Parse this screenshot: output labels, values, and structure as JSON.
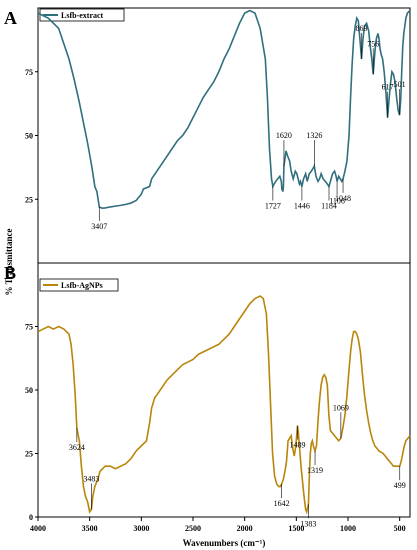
{
  "chart_data": {
    "type": "line",
    "xlabel": "Wavenumbers (cm⁻¹)",
    "ylabel": "% Transmittance",
    "xlim": [
      4000,
      400
    ],
    "x_ticks": [
      4000,
      3500,
      3000,
      2500,
      2000,
      1500,
      1000,
      500
    ],
    "panels": [
      {
        "letter": "A",
        "series_name": "Lsfb-extract",
        "color": "#2f6f7e",
        "ylim": [
          0,
          100
        ],
        "y_ticks": [
          25,
          50,
          75
        ],
        "series": [
          [
            4000,
            98
          ],
          [
            3900,
            96
          ],
          [
            3800,
            92
          ],
          [
            3750,
            86
          ],
          [
            3700,
            80
          ],
          [
            3650,
            72
          ],
          [
            3600,
            63
          ],
          [
            3560,
            55
          ],
          [
            3520,
            47
          ],
          [
            3480,
            38
          ],
          [
            3450,
            30
          ],
          [
            3430,
            28
          ],
          [
            3407,
            22
          ],
          [
            3380,
            21.5
          ],
          [
            3350,
            21.6
          ],
          [
            3300,
            22
          ],
          [
            3250,
            22.3
          ],
          [
            3200,
            22.6
          ],
          [
            3150,
            23
          ],
          [
            3100,
            23.5
          ],
          [
            3050,
            24.5
          ],
          [
            3000,
            27
          ],
          [
            2980,
            29
          ],
          [
            2950,
            29.5
          ],
          [
            2920,
            30
          ],
          [
            2900,
            33
          ],
          [
            2850,
            36
          ],
          [
            2800,
            39
          ],
          [
            2750,
            42
          ],
          [
            2700,
            45
          ],
          [
            2650,
            48
          ],
          [
            2600,
            50
          ],
          [
            2550,
            53
          ],
          [
            2500,
            57
          ],
          [
            2450,
            61
          ],
          [
            2400,
            65
          ],
          [
            2350,
            68
          ],
          [
            2300,
            71
          ],
          [
            2250,
            75
          ],
          [
            2200,
            80
          ],
          [
            2150,
            84
          ],
          [
            2100,
            89
          ],
          [
            2050,
            94
          ],
          [
            2000,
            98
          ],
          [
            1950,
            99
          ],
          [
            1900,
            98
          ],
          [
            1850,
            92
          ],
          [
            1800,
            80
          ],
          [
            1780,
            65
          ],
          [
            1760,
            45
          ],
          [
            1740,
            33
          ],
          [
            1727,
            30
          ],
          [
            1715,
            31
          ],
          [
            1700,
            32
          ],
          [
            1680,
            33
          ],
          [
            1660,
            34
          ],
          [
            1645,
            32
          ],
          [
            1640,
            29
          ],
          [
            1630,
            28
          ],
          [
            1625,
            30
          ],
          [
            1620,
            38
          ],
          [
            1600,
            44
          ],
          [
            1585,
            42
          ],
          [
            1565,
            40
          ],
          [
            1550,
            36
          ],
          [
            1530,
            33
          ],
          [
            1510,
            36
          ],
          [
            1495,
            35
          ],
          [
            1470,
            31
          ],
          [
            1460,
            32
          ],
          [
            1446,
            30
          ],
          [
            1430,
            33
          ],
          [
            1410,
            35
          ],
          [
            1395,
            32
          ],
          [
            1375,
            35
          ],
          [
            1355,
            36
          ],
          [
            1340,
            37
          ],
          [
            1326,
            38
          ],
          [
            1310,
            34
          ],
          [
            1290,
            32
          ],
          [
            1275,
            33
          ],
          [
            1260,
            35
          ],
          [
            1240,
            33
          ],
          [
            1220,
            32
          ],
          [
            1200,
            31
          ],
          [
            1184,
            30
          ],
          [
            1170,
            32
          ],
          [
            1150,
            35
          ],
          [
            1130,
            36
          ],
          [
            1115,
            34
          ],
          [
            1106,
            32
          ],
          [
            1090,
            34
          ],
          [
            1075,
            33
          ],
          [
            1060,
            32
          ],
          [
            1048,
            33
          ],
          [
            1030,
            36
          ],
          [
            1010,
            40
          ],
          [
            990,
            50
          ],
          [
            975,
            65
          ],
          [
            960,
            78
          ],
          [
            945,
            88
          ],
          [
            930,
            93
          ],
          [
            915,
            96
          ],
          [
            900,
            95
          ],
          [
            885,
            88
          ],
          [
            869,
            80
          ],
          [
            855,
            88
          ],
          [
            840,
            93
          ],
          [
            820,
            94
          ],
          [
            800,
            91
          ],
          [
            785,
            85
          ],
          [
            770,
            80
          ],
          [
            756,
            74
          ],
          [
            745,
            80
          ],
          [
            735,
            85
          ],
          [
            725,
            88
          ],
          [
            710,
            90
          ],
          [
            700,
            88
          ],
          [
            690,
            84
          ],
          [
            680,
            82
          ],
          [
            665,
            80
          ],
          [
            650,
            75
          ],
          [
            635,
            68
          ],
          [
            625,
            62
          ],
          [
            617,
            57
          ],
          [
            605,
            63
          ],
          [
            590,
            70
          ],
          [
            575,
            75
          ],
          [
            560,
            74
          ],
          [
            545,
            71
          ],
          [
            530,
            65
          ],
          [
            515,
            60
          ],
          [
            501,
            58
          ],
          [
            490,
            64
          ],
          [
            480,
            75
          ],
          [
            470,
            85
          ],
          [
            460,
            90
          ],
          [
            450,
            93
          ],
          [
            440,
            96
          ],
          [
            425,
            98
          ],
          [
            400,
            99
          ]
        ],
        "annotations": [
          {
            "label": "3407",
            "x": 3407,
            "y": 22
          },
          {
            "label": "1727",
            "x": 1727,
            "y": 30
          },
          {
            "label": "1620",
            "x": 1620,
            "y": 38
          },
          {
            "label": "1446",
            "x": 1446,
            "y": 30
          },
          {
            "label": "1326",
            "x": 1326,
            "y": 38
          },
          {
            "label": "1184",
            "x": 1184,
            "y": 30
          },
          {
            "label": "1106",
            "x": 1106,
            "y": 32
          },
          {
            "label": "1048",
            "x": 1048,
            "y": 33
          },
          {
            "label": "869",
            "x": 869,
            "y": 80
          },
          {
            "label": "756",
            "x": 756,
            "y": 74
          },
          {
            "label": "617",
            "x": 617,
            "y": 57
          },
          {
            "label": "501",
            "x": 501,
            "y": 58
          }
        ]
      },
      {
        "letter": "B",
        "series_name": "Lsfb-AgNPs",
        "color": "#b8860b",
        "ylim": [
          0,
          100
        ],
        "y_ticks": [
          0,
          25,
          50,
          75
        ],
        "series": [
          [
            4000,
            73
          ],
          [
            3950,
            74
          ],
          [
            3900,
            75
          ],
          [
            3850,
            74
          ],
          [
            3800,
            75
          ],
          [
            3750,
            74
          ],
          [
            3700,
            72
          ],
          [
            3680,
            68
          ],
          [
            3660,
            60
          ],
          [
            3640,
            48
          ],
          [
            3624,
            35
          ],
          [
            3600,
            30
          ],
          [
            3580,
            20
          ],
          [
            3560,
            12
          ],
          [
            3540,
            8
          ],
          [
            3520,
            6
          ],
          [
            3500,
            2
          ],
          [
            3483,
            3
          ],
          [
            3470,
            8
          ],
          [
            3450,
            12
          ],
          [
            3420,
            15
          ],
          [
            3400,
            18
          ],
          [
            3350,
            20
          ],
          [
            3300,
            20
          ],
          [
            3250,
            19
          ],
          [
            3200,
            20
          ],
          [
            3150,
            21
          ],
          [
            3100,
            23
          ],
          [
            3050,
            26
          ],
          [
            3000,
            28
          ],
          [
            2950,
            30
          ],
          [
            2920,
            37
          ],
          [
            2900,
            43
          ],
          [
            2870,
            47
          ],
          [
            2850,
            48
          ],
          [
            2800,
            51
          ],
          [
            2750,
            54
          ],
          [
            2700,
            56
          ],
          [
            2650,
            58
          ],
          [
            2600,
            60
          ],
          [
            2550,
            61
          ],
          [
            2500,
            62
          ],
          [
            2450,
            64
          ],
          [
            2400,
            65
          ],
          [
            2350,
            66
          ],
          [
            2300,
            67
          ],
          [
            2250,
            68
          ],
          [
            2200,
            70
          ],
          [
            2150,
            72
          ],
          [
            2100,
            75
          ],
          [
            2050,
            78
          ],
          [
            2000,
            81
          ],
          [
            1950,
            84
          ],
          [
            1900,
            86
          ],
          [
            1850,
            87
          ],
          [
            1820,
            86
          ],
          [
            1790,
            80
          ],
          [
            1770,
            65
          ],
          [
            1750,
            45
          ],
          [
            1730,
            25
          ],
          [
            1710,
            16
          ],
          [
            1690,
            13
          ],
          [
            1670,
            12
          ],
          [
            1655,
            12
          ],
          [
            1642,
            13
          ],
          [
            1625,
            15
          ],
          [
            1610,
            18
          ],
          [
            1595,
            22
          ],
          [
            1580,
            30
          ],
          [
            1565,
            31
          ],
          [
            1550,
            32
          ],
          [
            1535,
            27
          ],
          [
            1520,
            24
          ],
          [
            1505,
            28
          ],
          [
            1495,
            33
          ],
          [
            1489,
            36
          ],
          [
            1480,
            33
          ],
          [
            1470,
            28
          ],
          [
            1455,
            20
          ],
          [
            1440,
            14
          ],
          [
            1425,
            8
          ],
          [
            1410,
            3
          ],
          [
            1400,
            2
          ],
          [
            1383,
            5
          ],
          [
            1375,
            15
          ],
          [
            1365,
            25
          ],
          [
            1355,
            29
          ],
          [
            1345,
            30
          ],
          [
            1335,
            28
          ],
          [
            1319,
            26
          ],
          [
            1305,
            28
          ],
          [
            1290,
            38
          ],
          [
            1275,
            46
          ],
          [
            1260,
            52
          ],
          [
            1245,
            55
          ],
          [
            1230,
            56
          ],
          [
            1215,
            55
          ],
          [
            1200,
            52
          ],
          [
            1185,
            40
          ],
          [
            1170,
            34
          ],
          [
            1150,
            33
          ],
          [
            1130,
            32
          ],
          [
            1110,
            31
          ],
          [
            1090,
            30
          ],
          [
            1069,
            31
          ],
          [
            1050,
            35
          ],
          [
            1030,
            40
          ],
          [
            1010,
            48
          ],
          [
            990,
            58
          ],
          [
            975,
            65
          ],
          [
            960,
            70
          ],
          [
            945,
            73
          ],
          [
            930,
            73
          ],
          [
            915,
            72
          ],
          [
            900,
            70
          ],
          [
            880,
            65
          ],
          [
            860,
            56
          ],
          [
            840,
            48
          ],
          [
            820,
            42
          ],
          [
            800,
            37
          ],
          [
            780,
            33
          ],
          [
            760,
            30
          ],
          [
            740,
            28
          ],
          [
            720,
            27
          ],
          [
            700,
            26
          ],
          [
            680,
            25.5
          ],
          [
            660,
            25
          ],
          [
            640,
            24
          ],
          [
            620,
            23
          ],
          [
            600,
            22
          ],
          [
            580,
            21
          ],
          [
            560,
            20
          ],
          [
            540,
            20
          ],
          [
            520,
            20
          ],
          [
            499,
            20
          ],
          [
            485,
            22
          ],
          [
            470,
            25
          ],
          [
            455,
            28
          ],
          [
            440,
            30
          ],
          [
            420,
            31
          ],
          [
            400,
            32
          ]
        ],
        "annotations": [
          {
            "label": "3624",
            "x": 3624,
            "y": 35
          },
          {
            "label": "3483",
            "x": 3483,
            "y": 3
          },
          {
            "label": "1642",
            "x": 1642,
            "y": 13
          },
          {
            "label": "1489",
            "x": 1489,
            "y": 36
          },
          {
            "label": "1383",
            "x": 1383,
            "y": 5
          },
          {
            "label": "1319",
            "x": 1319,
            "y": 26
          },
          {
            "label": "1069",
            "x": 1069,
            "y": 31
          },
          {
            "label": "499",
            "x": 499,
            "y": 20
          }
        ]
      }
    ]
  }
}
